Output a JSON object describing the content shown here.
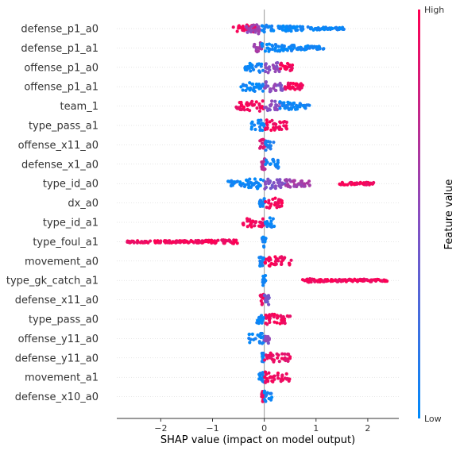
{
  "chart_data": {
    "type": "scatter",
    "subtype": "shap-beeswarm",
    "title": "",
    "xlabel": "SHAP value (impact on model output)",
    "ylabel": "",
    "xlim": [
      -2.85,
      2.6
    ],
    "xticks": [
      -2,
      -1,
      0,
      1,
      2
    ],
    "xtick_labels": [
      "−2",
      "−1",
      "0",
      "1",
      "2"
    ],
    "colorbar": {
      "label": "Feature value",
      "high_label": "High",
      "low_label": "Low",
      "low_color": "#008bfb",
      "high_color": "#ff0052"
    },
    "features": [
      {
        "name": "defense_p1_a0",
        "segments": [
          {
            "from": -0.6,
            "to": -0.15,
            "v": 0.95
          },
          {
            "from": -0.35,
            "to": -0.05,
            "v": 0.55
          },
          {
            "from": -0.05,
            "to": 1.55,
            "v": 0.05
          }
        ]
      },
      {
        "name": "defense_p1_a1",
        "segments": [
          {
            "from": -0.2,
            "to": -0.05,
            "v": 0.6
          },
          {
            "from": -0.05,
            "to": 1.15,
            "v": 0.05
          }
        ]
      },
      {
        "name": "offense_p1_a0",
        "segments": [
          {
            "from": -0.38,
            "to": 0.0,
            "v": 0.05
          },
          {
            "from": 0.0,
            "to": 0.3,
            "v": 0.5
          },
          {
            "from": 0.3,
            "to": 0.55,
            "v": 0.95
          }
        ]
      },
      {
        "name": "offense_p1_a1",
        "segments": [
          {
            "from": -0.45,
            "to": 0.0,
            "v": 0.05
          },
          {
            "from": 0.0,
            "to": 0.4,
            "v": 0.5
          },
          {
            "from": 0.4,
            "to": 0.75,
            "v": 0.95
          }
        ]
      },
      {
        "name": "team_1",
        "segments": [
          {
            "from": -0.55,
            "to": 0.0,
            "v": 0.95
          },
          {
            "from": 0.0,
            "to": 0.3,
            "v": 0.5
          },
          {
            "from": 0.3,
            "to": 0.9,
            "v": 0.05
          }
        ]
      },
      {
        "name": "type_pass_a1",
        "segments": [
          {
            "from": -0.28,
            "to": 0.0,
            "v": 0.05
          },
          {
            "from": 0.0,
            "to": 0.45,
            "v": 0.95
          }
        ]
      },
      {
        "name": "offense_x11_a0",
        "segments": [
          {
            "from": -0.1,
            "to": 0.02,
            "v": 0.85
          },
          {
            "from": 0.02,
            "to": 0.2,
            "v": 0.1
          }
        ]
      },
      {
        "name": "defense_x1_a0",
        "segments": [
          {
            "from": -0.08,
            "to": 0.02,
            "v": 0.7
          },
          {
            "from": 0.02,
            "to": 0.3,
            "v": 0.05
          }
        ]
      },
      {
        "name": "type_id_a0",
        "segments": [
          {
            "from": -0.7,
            "to": 0.0,
            "v": 0.05
          },
          {
            "from": 0.0,
            "to": 0.4,
            "v": 0.45
          },
          {
            "from": 0.4,
            "to": 0.9,
            "v": 0.6
          },
          {
            "from": 1.45,
            "to": 2.12,
            "v": 0.95
          }
        ]
      },
      {
        "name": "dx_a0",
        "segments": [
          {
            "from": -0.1,
            "to": 0.0,
            "v": 0.05
          },
          {
            "from": 0.0,
            "to": 0.35,
            "v": 0.95
          }
        ]
      },
      {
        "name": "type_id_a1",
        "segments": [
          {
            "from": -0.45,
            "to": 0.0,
            "v": 0.95
          },
          {
            "from": 0.0,
            "to": 0.2,
            "v": 0.05
          }
        ]
      },
      {
        "name": "type_foul_a1",
        "segments": [
          {
            "from": -2.65,
            "to": -0.5,
            "v": 0.95
          },
          {
            "from": -0.05,
            "to": 0.03,
            "v": 0.05
          }
        ]
      },
      {
        "name": "movement_a0",
        "segments": [
          {
            "from": -0.1,
            "to": 0.0,
            "v": 0.05
          },
          {
            "from": 0.0,
            "to": 0.55,
            "v": 0.95
          }
        ]
      },
      {
        "name": "type_gk_catch_a1",
        "segments": [
          {
            "from": -0.03,
            "to": 0.03,
            "v": 0.05
          },
          {
            "from": 0.7,
            "to": 2.38,
            "v": 0.95
          }
        ]
      },
      {
        "name": "defense_x11_a0",
        "segments": [
          {
            "from": -0.08,
            "to": 0.0,
            "v": 0.95
          },
          {
            "from": 0.0,
            "to": 0.1,
            "v": 0.4
          }
        ]
      },
      {
        "name": "type_pass_a0",
        "segments": [
          {
            "from": -0.15,
            "to": 0.0,
            "v": 0.05
          },
          {
            "from": 0.0,
            "to": 0.5,
            "v": 0.95
          }
        ]
      },
      {
        "name": "offense_y11_a0",
        "segments": [
          {
            "from": -0.3,
            "to": 0.0,
            "v": 0.05
          },
          {
            "from": 0.0,
            "to": 0.1,
            "v": 0.5
          }
        ]
      },
      {
        "name": "defense_y11_a0",
        "segments": [
          {
            "from": -0.05,
            "to": 0.0,
            "v": 0.05
          },
          {
            "from": 0.0,
            "to": 0.5,
            "v": 0.9
          }
        ]
      },
      {
        "name": "movement_a1",
        "segments": [
          {
            "from": -0.1,
            "to": 0.0,
            "v": 0.05
          },
          {
            "from": 0.0,
            "to": 0.5,
            "v": 0.95
          }
        ]
      },
      {
        "name": "defense_x10_a0",
        "segments": [
          {
            "from": -0.05,
            "to": 0.0,
            "v": 0.9
          },
          {
            "from": 0.0,
            "to": 0.15,
            "v": 0.05
          }
        ]
      }
    ]
  }
}
